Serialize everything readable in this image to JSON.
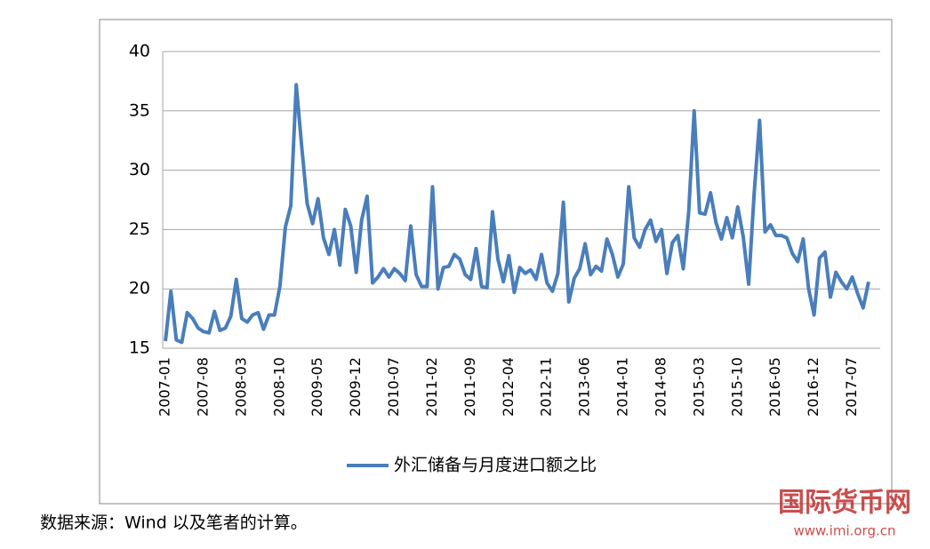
{
  "chart_data": {
    "type": "line",
    "categories": [
      "2007-01",
      null,
      null,
      null,
      null,
      null,
      null,
      "2007-08",
      null,
      null,
      null,
      null,
      null,
      null,
      "2008-03",
      null,
      null,
      null,
      null,
      null,
      null,
      "2008-10",
      null,
      null,
      null,
      null,
      null,
      null,
      "2009-05",
      null,
      null,
      null,
      null,
      null,
      null,
      "2009-12",
      null,
      null,
      null,
      null,
      null,
      null,
      "2010-07",
      null,
      null,
      null,
      null,
      null,
      null,
      "2011-02",
      null,
      null,
      null,
      null,
      null,
      null,
      "2011-09",
      null,
      null,
      null,
      null,
      null,
      null,
      "2012-04",
      null,
      null,
      null,
      null,
      null,
      null,
      "2012-11",
      null,
      null,
      null,
      null,
      null,
      null,
      "2013-06",
      null,
      null,
      null,
      null,
      null,
      null,
      "2014-01",
      null,
      null,
      null,
      null,
      null,
      null,
      "2014-08",
      null,
      null,
      null,
      null,
      null,
      null,
      "2015-03",
      null,
      null,
      null,
      null,
      null,
      null,
      "2015-10",
      null,
      null,
      null,
      null,
      null,
      null,
      "2016-05",
      null,
      null,
      null,
      null,
      null,
      null,
      "2016-12",
      null,
      null,
      null,
      null,
      null,
      null,
      "2017-07",
      null,
      null,
      null
    ],
    "series": [
      {
        "name": "外汇储备与月度进口额之比",
        "color": "#4a7ebb",
        "values": [
          15.6,
          19.8,
          15.7,
          15.5,
          18.0,
          17.5,
          16.7,
          16.4,
          16.3,
          18.1,
          16.5,
          16.7,
          17.7,
          20.8,
          17.5,
          17.2,
          17.8,
          18.0,
          16.6,
          17.8,
          17.8,
          20.2,
          25.2,
          27.0,
          37.2,
          32.0,
          27.2,
          25.5,
          27.6,
          24.3,
          22.9,
          25.0,
          22.0,
          26.7,
          25.3,
          21.4,
          25.8,
          27.8,
          20.5,
          21.0,
          21.7,
          21.0,
          21.7,
          21.3,
          20.7,
          25.3,
          21.2,
          20.2,
          20.2,
          28.6,
          20.0,
          21.8,
          21.9,
          22.9,
          22.5,
          21.2,
          20.8,
          23.4,
          20.2,
          20.1,
          26.5,
          22.5,
          20.6,
          22.8,
          19.7,
          21.8,
          21.3,
          21.6,
          20.8,
          22.9,
          20.5,
          19.8,
          21.3,
          27.3,
          18.9,
          20.9,
          21.7,
          23.8,
          21.2,
          21.9,
          21.5,
          24.2,
          22.9,
          21.0,
          22.1,
          28.6,
          24.3,
          23.5,
          25.0,
          25.8,
          24.0,
          25.0,
          21.3,
          23.9,
          24.5,
          21.7,
          26.5,
          35.0,
          26.4,
          26.3,
          28.1,
          25.6,
          24.2,
          26.0,
          24.3,
          26.9,
          24.4,
          20.4,
          28.0,
          34.2,
          24.8,
          25.4,
          24.5,
          24.5,
          24.3,
          23.0,
          22.3,
          24.2,
          20.0,
          17.8,
          22.6,
          23.1,
          19.3,
          21.4,
          20.6,
          20.0,
          21.0,
          19.6,
          18.4,
          20.6
        ]
      }
    ],
    "ylim": [
      15,
      40
    ],
    "yticks": [
      15,
      20,
      25,
      30,
      35,
      40
    ],
    "grid": true,
    "legend": "bottom",
    "source": "数据来源：Wind 以及笔者的计算。",
    "watermark": "国际货币网",
    "watermark_url": "www.imi.org.cn"
  }
}
